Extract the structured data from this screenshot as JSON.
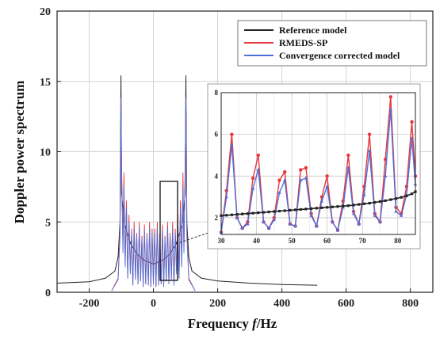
{
  "chart_data": [
    {
      "type": "line",
      "title": "",
      "xlabel_parts": [
        "Frequency ",
        "f",
        "/Hz"
      ],
      "ylabel": "Doppler power spectrum",
      "xlim": [
        -300,
        870
      ],
      "ylim": [
        0,
        20
      ],
      "x_ticks": [
        -200,
        0,
        200,
        400,
        600,
        800
      ],
      "y_ticks": [
        0,
        5,
        10,
        15,
        20
      ],
      "grid": true,
      "legend_position": "top-right",
      "series": [
        {
          "name": "Reference model",
          "color": "#222222",
          "x": [
            -300,
            -200,
            -150,
            -120,
            -110,
            -104,
            -101,
            -99,
            -90,
            -70,
            -50,
            -30,
            0,
            30,
            50,
            70,
            90,
            99,
            101,
            104,
            110,
            120,
            150,
            200,
            300,
            400,
            510
          ],
          "y": [
            0.65,
            0.75,
            1.0,
            1.5,
            2.5,
            5.0,
            15.4,
            7.0,
            4.8,
            3.4,
            2.7,
            2.3,
            2.0,
            2.3,
            2.7,
            3.4,
            4.8,
            7.0,
            15.4,
            5.0,
            2.5,
            1.5,
            1.0,
            0.8,
            0.65,
            0.55,
            0.5
          ]
        },
        {
          "name": "RMEDS-SP",
          "color": "#e8363b",
          "x": [
            -130,
            -110,
            -104,
            -101,
            -99,
            -95,
            -92,
            -88,
            -84,
            -80,
            -76,
            -72,
            -68,
            -64,
            -60,
            -56,
            -52,
            -48,
            -44,
            -40,
            -36,
            -32,
            -28,
            -24,
            -20,
            -16,
            -12,
            -8,
            -4,
            0,
            4,
            8,
            12,
            16,
            20,
            24,
            28,
            32,
            36,
            40,
            44,
            48,
            52,
            56,
            60,
            64,
            68,
            72,
            76,
            80,
            84,
            88,
            92,
            95,
            99,
            101,
            104,
            110,
            130
          ],
          "y": [
            0.1,
            1.0,
            4.5,
            13.5,
            9.0,
            3.0,
            8.5,
            2.0,
            6.5,
            1.0,
            5.5,
            1.5,
            4.5,
            0.5,
            5.0,
            1.0,
            4.2,
            0.6,
            5.0,
            0.8,
            4.0,
            0.4,
            4.8,
            0.6,
            4.2,
            0.5,
            5.0,
            0.4,
            4.5,
            0.6,
            4.5,
            0.4,
            5.0,
            0.5,
            4.2,
            0.6,
            4.8,
            0.4,
            4.0,
            0.8,
            5.0,
            0.6,
            4.2,
            1.0,
            5.0,
            0.5,
            4.5,
            1.5,
            5.5,
            1.0,
            6.5,
            2.0,
            8.5,
            3.0,
            9.0,
            13.5,
            4.5,
            1.0,
            0.1
          ]
        },
        {
          "name": "Convergence corrected model",
          "color": "#4f6fd8",
          "x": [
            -130,
            -110,
            -104,
            -101,
            -99,
            -95,
            -92,
            -88,
            -84,
            -80,
            -76,
            -72,
            -68,
            -64,
            -60,
            -56,
            -52,
            -48,
            -44,
            -40,
            -36,
            -32,
            -28,
            -24,
            -20,
            -16,
            -12,
            -8,
            -4,
            0,
            4,
            8,
            12,
            16,
            20,
            24,
            28,
            32,
            36,
            40,
            44,
            48,
            52,
            56,
            60,
            64,
            68,
            72,
            76,
            80,
            84,
            88,
            92,
            95,
            99,
            101,
            104,
            110,
            130
          ],
          "y": [
            0.1,
            0.9,
            4.0,
            13.8,
            8.5,
            2.8,
            7.5,
            1.8,
            6.0,
            1.0,
            5.0,
            1.3,
            4.2,
            0.5,
            4.5,
            0.9,
            4.0,
            0.6,
            4.6,
            0.8,
            3.8,
            0.4,
            4.4,
            0.6,
            4.0,
            0.5,
            4.6,
            0.4,
            4.2,
            0.6,
            4.2,
            0.4,
            4.6,
            0.5,
            4.0,
            0.6,
            4.4,
            0.4,
            3.8,
            0.8,
            4.6,
            0.6,
            4.0,
            0.9,
            4.5,
            0.5,
            4.2,
            1.3,
            5.0,
            1.0,
            6.0,
            1.8,
            7.5,
            2.8,
            8.5,
            13.8,
            4.0,
            0.9,
            0.1
          ]
        }
      ]
    },
    {
      "type": "line",
      "title": "",
      "xlim": [
        30,
        85
      ],
      "ylim": [
        1.2,
        8
      ],
      "x_ticks": [
        30,
        40,
        50,
        60,
        70,
        80
      ],
      "y_ticks": [
        2,
        4,
        6,
        8
      ],
      "series": [
        {
          "name": "Reference model",
          "color": "#222222",
          "x": [
            30,
            31.5,
            33,
            34.5,
            36,
            37.5,
            39,
            40.5,
            42,
            43.5,
            45,
            46.5,
            48,
            49.5,
            51,
            52.5,
            54,
            55.5,
            57,
            58.5,
            60,
            61.5,
            63,
            64.5,
            66,
            67.5,
            69,
            70.5,
            72,
            73.5,
            75,
            76.5,
            78,
            79.5,
            81,
            82.5,
            84,
            85
          ],
          "y": [
            2.1,
            2.12,
            2.14,
            2.16,
            2.18,
            2.2,
            2.22,
            2.24,
            2.26,
            2.28,
            2.3,
            2.32,
            2.34,
            2.36,
            2.38,
            2.4,
            2.42,
            2.44,
            2.46,
            2.48,
            2.5,
            2.52,
            2.54,
            2.56,
            2.58,
            2.61,
            2.64,
            2.67,
            2.7,
            2.74,
            2.78,
            2.82,
            2.87,
            2.92,
            2.98,
            3.05,
            3.15,
            3.25
          ]
        },
        {
          "name": "RMEDS-SP",
          "color": "#e8363b",
          "x": [
            30,
            31.5,
            33,
            34.5,
            36,
            37.5,
            39,
            40.5,
            42,
            43.5,
            45,
            46.5,
            48,
            49.5,
            51,
            52.5,
            54,
            55.5,
            57,
            58.5,
            60,
            61.5,
            63,
            64.5,
            66,
            67.5,
            69,
            70.5,
            72,
            73.5,
            75,
            76.5,
            78,
            79.5,
            81,
            82.5,
            84,
            85
          ],
          "y": [
            1.3,
            3.3,
            6.0,
            2.0,
            1.5,
            1.8,
            3.9,
            5.0,
            1.8,
            1.5,
            2.0,
            3.8,
            4.2,
            1.7,
            1.6,
            4.3,
            4.4,
            2.2,
            1.6,
            3.0,
            4.0,
            1.8,
            1.4,
            2.8,
            5.0,
            2.3,
            1.7,
            3.5,
            6.0,
            2.2,
            1.8,
            4.8,
            7.8,
            2.5,
            2.2,
            3.5,
            6.6,
            4.0
          ]
        },
        {
          "name": "Convergence corrected model",
          "color": "#4f6fd8",
          "x": [
            30,
            31.5,
            33,
            34.5,
            36,
            37.5,
            39,
            40.5,
            42,
            43.5,
            45,
            46.5,
            48,
            49.5,
            51,
            52.5,
            54,
            55.5,
            57,
            58.5,
            60,
            61.5,
            63,
            64.5,
            66,
            67.5,
            69,
            70.5,
            72,
            73.5,
            75,
            76.5,
            78,
            79.5,
            81,
            82.5,
            84,
            85
          ],
          "y": [
            1.3,
            3.0,
            5.5,
            2.0,
            1.5,
            1.7,
            3.4,
            4.3,
            1.8,
            1.5,
            1.9,
            3.2,
            3.8,
            1.7,
            1.6,
            3.8,
            3.9,
            2.1,
            1.6,
            2.8,
            3.5,
            1.8,
            1.4,
            2.5,
            4.4,
            2.2,
            1.7,
            3.1,
            5.2,
            2.1,
            1.8,
            4.0,
            7.2,
            2.3,
            2.1,
            3.1,
            5.8,
            3.6
          ]
        }
      ]
    }
  ]
}
